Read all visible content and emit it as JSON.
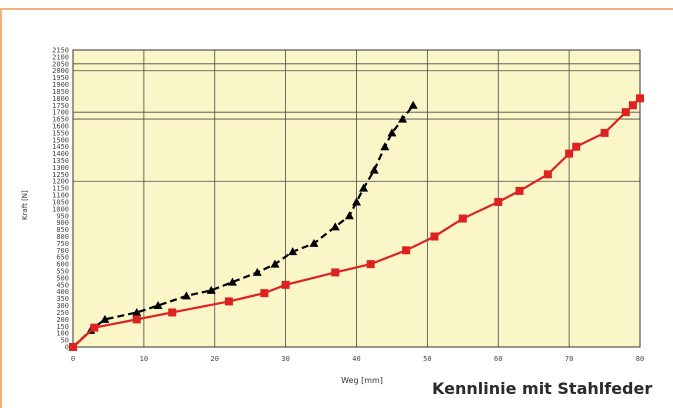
{
  "caption": "Kennlinie mit Stahlfeder",
  "chart_data": {
    "type": "line",
    "xlabel": "Weg [mm]",
    "ylabel": "Kraft [N]",
    "xlim": [
      0,
      80
    ],
    "ylim": [
      0,
      2150
    ],
    "xticks": [
      "0",
      "10",
      "20",
      "30",
      "40",
      "50",
      "60",
      "70",
      "80"
    ],
    "yticks": [
      "0",
      "50",
      "100",
      "150",
      "200",
      "250",
      "300",
      "350",
      "400",
      "450",
      "500",
      "550",
      "600",
      "650",
      "700",
      "750",
      "800",
      "850",
      "900",
      "950",
      "1000",
      "1050",
      "1100",
      "1150",
      "1200",
      "1250",
      "1300",
      "1350",
      "1400",
      "1450",
      "1500",
      "1550",
      "1600",
      "1650",
      "1700",
      "1750",
      "1800",
      "1850",
      "1900",
      "1950",
      "2000",
      "2050",
      "2100",
      "2150"
    ],
    "grid": true,
    "background": "#fbf6c8",
    "series": [
      {
        "color": "#000000",
        "marker": "triangle",
        "dash": true,
        "x": [
          0,
          2.5,
          4.5,
          9,
          12,
          16,
          19.5,
          22.5,
          26,
          28.5,
          31,
          34,
          37,
          39,
          40,
          41,
          42.5,
          44,
          45,
          46.5,
          48
        ],
        "y": [
          0,
          120,
          200,
          250,
          300,
          370,
          410,
          470,
          540,
          600,
          690,
          750,
          870,
          950,
          1050,
          1150,
          1280,
          1450,
          1550,
          1650,
          1750
        ]
      },
      {
        "color": "#dd2222",
        "marker": "square",
        "dash": false,
        "x": [
          0,
          3,
          9,
          14,
          22,
          27,
          30,
          37,
          42,
          47,
          51,
          55,
          60,
          63,
          67,
          70,
          71,
          75,
          78,
          79,
          80
        ],
        "y": [
          0,
          140,
          200,
          250,
          330,
          390,
          450,
          540,
          600,
          700,
          800,
          930,
          1050,
          1130,
          1250,
          1400,
          1450,
          1550,
          1700,
          1750,
          1800
        ]
      }
    ]
  }
}
